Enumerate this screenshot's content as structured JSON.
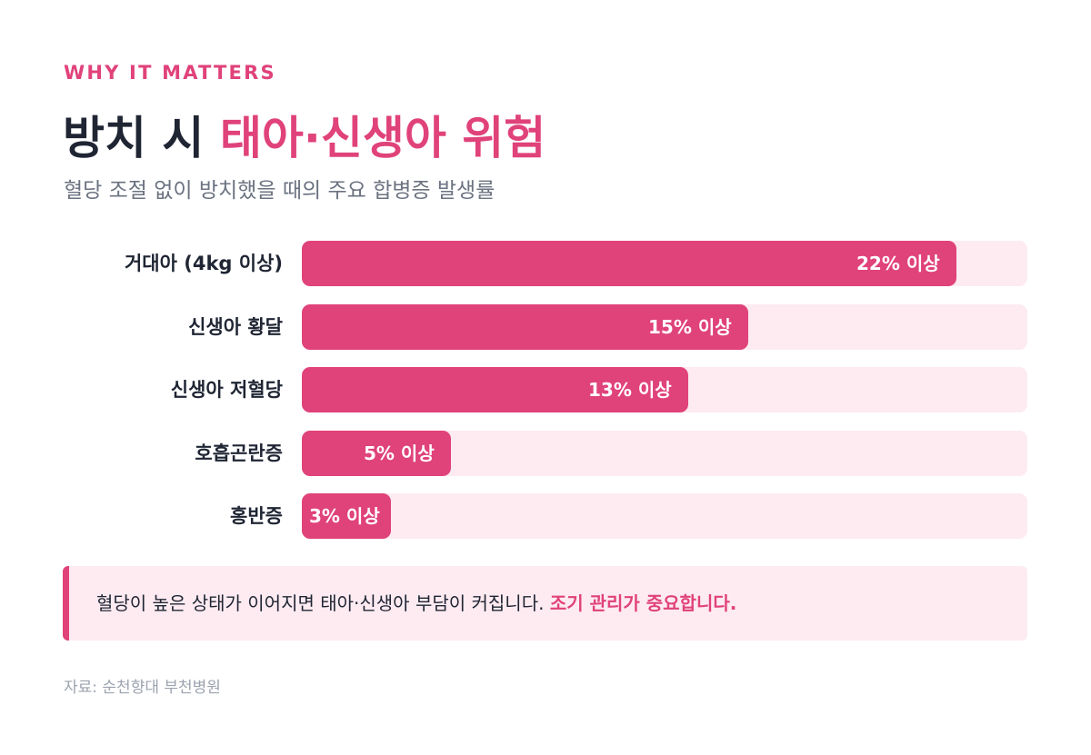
{
  "header": {
    "eyebrow": "WHY IT MATTERS",
    "title_plain": "방치 시",
    "title_accent": "태아·신생아 위험",
    "subtitle": "혈당 조절 없이 방치했을 때의 주요 합병증 발생률"
  },
  "chart_data": {
    "type": "bar",
    "orientation": "horizontal",
    "categories": [
      "거대아 (4kg 이상)",
      "신생아 황달",
      "신생아 저혈당",
      "호흡곤란증",
      "홍반증"
    ],
    "values": [
      22,
      15,
      13,
      5,
      3
    ],
    "value_labels": [
      "22% 이상",
      "15% 이상",
      "13% 이상",
      "5% 이상",
      "3% 이상"
    ],
    "unit": "%",
    "xlim": [
      0,
      24.4
    ],
    "colors": {
      "bar": "#e0427a",
      "track": "#fdebf1"
    }
  },
  "callout": {
    "text": "혈당이 높은 상태가 이어지면 태아·신생아 부담이 커집니다.",
    "highlight": "조기 관리가 중요합니다."
  },
  "source": "자료: 순천향대 부천병원",
  "colors": {
    "accent": "#e0427a",
    "title": "#1f2533",
    "subtitle": "#6b7280",
    "muted": "#9ca3af"
  }
}
